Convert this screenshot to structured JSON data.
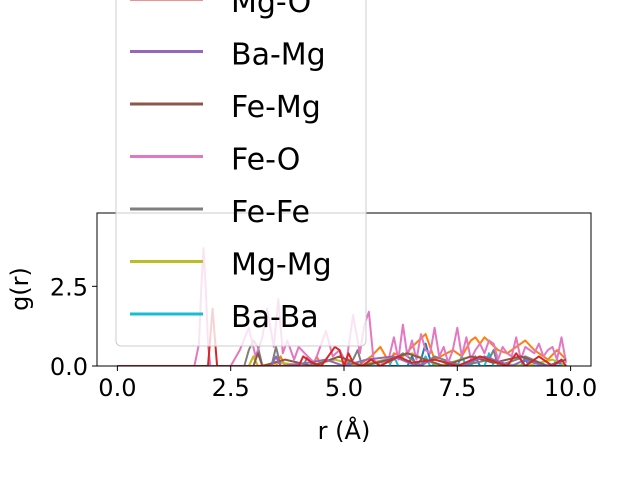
{
  "chart_data": {
    "type": "line",
    "xlabel": "r (Å)",
    "ylabel": "g(r)",
    "xlim": [
      -0.45,
      10.45
    ],
    "ylim": [
      0,
      4.8
    ],
    "xticks": [
      "0.0",
      "2.5",
      "5.0",
      "7.5",
      "10.0"
    ],
    "yticks": [
      "0.0",
      "2.5"
    ],
    "legend_position": "upper-left",
    "series": [
      {
        "name": "Mg-O",
        "color": "#d62728",
        "x": [
          0.0,
          1.9,
          2.0,
          2.05,
          2.1,
          2.15,
          2.2,
          2.3,
          2.5,
          3.0,
          3.5,
          4.0,
          4.1,
          4.3,
          4.5,
          4.7,
          4.8,
          4.9,
          5.0,
          5.1,
          5.2,
          5.4,
          5.6,
          5.8,
          6.2,
          6.5,
          7.0,
          7.5,
          8.0,
          8.6,
          8.8,
          9.0,
          9.3,
          9.6,
          9.8,
          9.9
        ],
        "y": [
          0.0,
          0.0,
          0.0,
          0.9,
          1.8,
          0.9,
          0.0,
          0.0,
          0.0,
          0.0,
          0.0,
          0.0,
          0.3,
          0.1,
          0.0,
          0.4,
          0.6,
          0.5,
          0.0,
          0.4,
          0.1,
          0.0,
          0.2,
          0.0,
          0.3,
          0.1,
          0.2,
          0.0,
          0.3,
          0.0,
          0.4,
          0.0,
          0.3,
          0.0,
          0.2,
          0.0
        ]
      },
      {
        "name": "Ba-Mg",
        "color": "#9467bd",
        "x": [
          0.0,
          3.4,
          3.5,
          3.6,
          4.2,
          4.6,
          5.0,
          5.5,
          6.1,
          6.6,
          7.0,
          7.6,
          8.1,
          8.7,
          9.0,
          9.4,
          9.8
        ],
        "y": [
          0.0,
          0.0,
          0.3,
          0.0,
          0.1,
          0.2,
          0.0,
          0.2,
          0.3,
          0.0,
          0.2,
          0.0,
          0.3,
          0.0,
          0.2,
          0.0,
          0.1
        ]
      },
      {
        "name": "Fe-Mg",
        "color": "#8c564b",
        "x": [
          0.0,
          3.0,
          3.1,
          3.2,
          3.7,
          4.3,
          4.9,
          5.4,
          6.0,
          6.4,
          7.2,
          7.8,
          8.3,
          8.9,
          9.5,
          9.9
        ],
        "y": [
          0.0,
          0.0,
          0.4,
          0.0,
          0.2,
          0.0,
          0.3,
          0.0,
          0.2,
          0.4,
          0.0,
          0.3,
          0.1,
          0.3,
          0.0,
          0.2
        ]
      },
      {
        "name": "Fe-O",
        "color": "#e377c2",
        "x": [
          0.0,
          1.7,
          1.8,
          1.85,
          1.9,
          1.95,
          2.0,
          2.05,
          2.1,
          2.15,
          2.2,
          2.5,
          2.7,
          2.9,
          3.05,
          3.2,
          3.3,
          3.45,
          3.55,
          3.65,
          3.75,
          3.9,
          4.0,
          4.2,
          4.35,
          4.6,
          4.75,
          4.9,
          5.05,
          5.2,
          5.35,
          5.45,
          5.55,
          5.65,
          5.8,
          6.0,
          6.1,
          6.2,
          6.3,
          6.4,
          6.5,
          6.6,
          6.7,
          6.8,
          6.9,
          7.0,
          7.1,
          7.2,
          7.3,
          7.4,
          7.5,
          7.6,
          7.7,
          7.8,
          7.9,
          8.0,
          8.1,
          8.2,
          8.3,
          8.4,
          8.5,
          8.6,
          8.7,
          8.8,
          8.9,
          9.0,
          9.1,
          9.2,
          9.3,
          9.4,
          9.5,
          9.6,
          9.7,
          9.8,
          9.9
        ],
        "y": [
          0.0,
          0.0,
          0.7,
          2.4,
          3.7,
          2.4,
          0.7,
          0.0,
          0.0,
          0.0,
          0.0,
          0.0,
          0.5,
          1.2,
          0.3,
          0.9,
          1.8,
          0.6,
          2.1,
          0.4,
          0.8,
          0.2,
          0.6,
          0.3,
          0.1,
          1.1,
          0.3,
          0.5,
          0.1,
          1.6,
          0.4,
          1.3,
          1.7,
          0.2,
          0.0,
          0.3,
          0.9,
          0.2,
          1.3,
          0.3,
          0.8,
          0.2,
          1.0,
          0.5,
          0.4,
          1.2,
          0.3,
          0.6,
          0.1,
          0.5,
          1.2,
          0.3,
          0.9,
          0.2,
          0.5,
          0.7,
          0.4,
          0.8,
          0.7,
          0.2,
          0.6,
          0.4,
          0.3,
          0.9,
          0.2,
          0.6,
          0.5,
          0.4,
          0.7,
          0.3,
          0.5,
          0.6,
          0.2,
          0.9,
          0.1
        ]
      },
      {
        "name": "Fe-Fe",
        "color": "#7f7f7f",
        "x": [
          0.0,
          2.8,
          2.9,
          3.0,
          3.1,
          3.2,
          3.4,
          3.5,
          3.6,
          4.1,
          4.2,
          4.3,
          5.0,
          5.2,
          5.3,
          5.4,
          6.1,
          6.3,
          6.7,
          7.0,
          7.6,
          8.2,
          8.3,
          8.4,
          9.0,
          9.5,
          9.9
        ],
        "y": [
          0.0,
          0.0,
          0.5,
          0.8,
          0.6,
          0.0,
          0.0,
          0.6,
          0.0,
          0.0,
          0.3,
          0.0,
          0.0,
          0.2,
          0.5,
          0.0,
          0.2,
          0.4,
          0.0,
          0.3,
          0.0,
          0.2,
          0.5,
          0.0,
          0.3,
          0.0,
          0.2
        ]
      },
      {
        "name": "Mg-Mg",
        "color": "#bcbd22",
        "x": [
          0.0,
          2.9,
          3.0,
          3.1,
          3.6,
          4.2,
          4.8,
          5.3,
          5.9,
          6.5,
          7.1,
          7.8,
          8.3,
          9.0,
          9.6,
          9.9
        ],
        "y": [
          0.0,
          0.0,
          0.3,
          0.0,
          0.1,
          0.0,
          0.2,
          0.0,
          0.2,
          0.4,
          0.0,
          0.3,
          0.1,
          0.0,
          0.2,
          0.0
        ]
      },
      {
        "name": "Ba-Ba",
        "color": "#17becf",
        "x": [
          0.0,
          6.0,
          6.1,
          6.2,
          6.7,
          6.8,
          6.9,
          7.5,
          7.6,
          7.7,
          8.1,
          8.2,
          8.3,
          8.9,
          9.0,
          9.1,
          9.6,
          9.7,
          9.8
        ],
        "y": [
          0.0,
          0.0,
          0.3,
          0.0,
          0.0,
          0.3,
          0.0,
          0.0,
          0.3,
          0.0,
          0.0,
          0.4,
          0.0,
          0.0,
          0.3,
          0.0,
          0.0,
          0.2,
          0.0
        ]
      },
      {
        "name": "",
        "color": "#1f77b4",
        "x": [
          0.0,
          6.4,
          6.5,
          6.6,
          6.7,
          6.8,
          6.9,
          7.0,
          7.8,
          7.9,
          8.0,
          8.9,
          9.0,
          9.1,
          9.9
        ],
        "y": [
          0.0,
          0.0,
          0.3,
          0.0,
          0.2,
          0.7,
          0.2,
          0.0,
          0.0,
          0.3,
          0.0,
          0.0,
          0.2,
          0.0,
          0.0
        ]
      },
      {
        "name": "",
        "color": "#ff7f0e",
        "x": [
          0.0,
          1.8,
          2.0,
          2.2,
          2.9,
          3.0,
          3.1,
          3.5,
          3.6,
          3.7,
          4.3,
          4.4,
          4.5,
          5.0,
          5.1,
          5.3,
          5.6,
          5.8,
          6.0,
          6.1,
          6.3,
          6.5,
          6.8,
          6.9,
          7.0,
          7.4,
          7.6,
          7.8,
          7.9,
          8.0,
          8.1,
          8.4,
          8.6,
          8.9,
          9.0,
          9.2,
          9.5,
          9.7,
          9.9
        ],
        "y": [
          0.0,
          0.0,
          0.0,
          0.0,
          0.0,
          0.3,
          0.0,
          0.0,
          0.3,
          0.0,
          0.0,
          0.3,
          0.0,
          0.0,
          0.2,
          0.0,
          0.3,
          0.6,
          0.1,
          0.4,
          0.3,
          0.6,
          1.0,
          0.6,
          0.2,
          0.5,
          0.3,
          0.8,
          0.9,
          0.7,
          0.9,
          0.5,
          0.4,
          0.7,
          0.8,
          0.5,
          0.2,
          0.5,
          0.2
        ]
      }
    ]
  }
}
